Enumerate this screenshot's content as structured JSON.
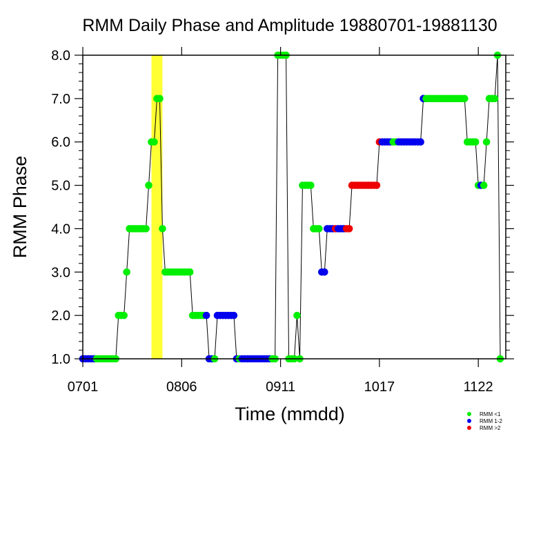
{
  "chart_data": {
    "type": "scatter",
    "title": "RMM Daily Phase and Amplitude 19880701-19881130",
    "xlabel": "Time (mmdd)",
    "ylabel": "RMM Phase",
    "xlim": [
      1,
      155
    ],
    "ylim": [
      1,
      8
    ],
    "x_tick_values": [
      1,
      37,
      73,
      109,
      145
    ],
    "x_tick_labels": [
      "0701",
      "0806",
      "0911",
      "1017",
      "1122"
    ],
    "y_tick_values": [
      1,
      2,
      3,
      4,
      5,
      6,
      7,
      8
    ],
    "y_tick_labels": [
      "1.0",
      "2.0",
      "3.0",
      "4.0",
      "5.0",
      "6.0",
      "7.0",
      "8.0"
    ],
    "highlight_band": {
      "x_start": 26,
      "x_end": 30,
      "color": "#ffff33"
    },
    "colors": {
      "low": "#00ee00",
      "mid": "#0000ee",
      "high": "#ee0000",
      "line": "#000000"
    },
    "legend": [
      {
        "label": "RMM <1",
        "color": "#00ee00"
      },
      {
        "label": "RMM 1-2",
        "color": "#0000ee"
      },
      {
        "label": "RMM >2",
        "color": "#ee0000"
      }
    ],
    "legend_position": "bottom-right",
    "day_index": [
      1,
      2,
      3,
      4,
      5,
      6,
      7,
      8,
      9,
      10,
      11,
      12,
      13,
      14,
      15,
      16,
      17,
      18,
      19,
      20,
      21,
      22,
      23,
      24,
      25,
      26,
      27,
      28,
      29,
      30,
      31,
      32,
      33,
      34,
      35,
      36,
      37,
      38,
      39,
      40,
      41,
      42,
      43,
      44,
      45,
      46,
      47,
      48,
      49,
      50,
      51,
      52,
      53,
      54,
      55,
      56,
      57,
      58,
      59,
      60,
      61,
      62,
      63,
      64,
      65,
      66,
      67,
      68,
      69,
      70,
      71,
      72,
      73,
      74,
      75,
      76,
      77,
      78,
      79,
      80,
      81,
      82,
      83,
      84,
      85,
      86,
      87,
      88,
      89,
      90,
      91,
      92,
      93,
      94,
      95,
      96,
      97,
      98,
      99,
      100,
      101,
      102,
      103,
      104,
      105,
      106,
      107,
      108,
      109,
      110,
      111,
      112,
      113,
      114,
      115,
      116,
      117,
      118,
      119,
      120,
      121,
      122,
      123,
      124,
      125,
      126,
      127,
      128,
      129,
      130,
      131,
      132,
      133,
      134,
      135,
      136,
      137,
      138,
      139,
      140,
      141,
      142,
      143,
      144,
      145,
      146,
      147,
      148,
      149,
      150,
      151,
      152,
      153
    ],
    "phase": [
      1,
      1,
      1,
      1,
      1,
      1,
      1,
      1,
      1,
      1,
      1,
      1,
      1,
      2,
      2,
      2,
      3,
      4,
      4,
      4,
      4,
      4,
      4,
      4,
      5,
      6,
      6,
      7,
      7,
      4,
      3,
      3,
      3,
      3,
      3,
      3,
      3,
      3,
      3,
      3,
      2,
      2,
      2,
      2,
      2,
      2,
      1,
      1,
      1,
      2,
      2,
      2,
      2,
      2,
      2,
      2,
      1,
      1,
      1,
      1,
      1,
      1,
      1,
      1,
      1,
      1,
      1,
      1,
      1,
      1,
      1,
      8,
      8,
      8,
      8,
      1,
      1,
      1,
      2,
      1,
      5,
      5,
      5,
      5,
      4,
      4,
      4,
      3,
      3,
      4,
      4,
      4,
      4,
      4,
      4,
      4,
      4,
      4,
      5,
      5,
      5,
      5,
      5,
      5,
      5,
      5,
      5,
      5,
      6,
      6,
      6,
      6,
      6,
      6,
      6,
      6,
      6,
      6,
      6,
      6,
      6,
      6,
      6,
      6,
      7,
      7,
      7,
      7,
      7,
      7,
      7,
      7,
      7,
      7,
      7,
      7,
      7,
      7,
      7,
      7,
      6,
      6,
      6,
      6,
      5,
      5,
      5,
      6,
      7,
      7,
      7,
      8,
      1
    ],
    "amplitude_class": [
      "mid",
      "mid",
      "mid",
      "mid",
      "mid",
      "low",
      "low",
      "low",
      "low",
      "low",
      "low",
      "low",
      "low",
      "low",
      "low",
      "low",
      "low",
      "low",
      "low",
      "low",
      "low",
      "low",
      "low",
      "low",
      "low",
      "low",
      "low",
      "low",
      "low",
      "low",
      "low",
      "low",
      "low",
      "low",
      "low",
      "low",
      "low",
      "low",
      "low",
      "low",
      "low",
      "low",
      "low",
      "low",
      "low",
      "mid",
      "mid",
      "mid",
      "low",
      "mid",
      "mid",
      "mid",
      "mid",
      "mid",
      "mid",
      "mid",
      "mid",
      "low",
      "mid",
      "mid",
      "mid",
      "mid",
      "mid",
      "mid",
      "mid",
      "mid",
      "mid",
      "mid",
      "mid",
      "low",
      "low",
      "low",
      "low",
      "low",
      "low",
      "low",
      "low",
      "low",
      "low",
      "low",
      "low",
      "low",
      "low",
      "low",
      "low",
      "low",
      "low",
      "mid",
      "mid",
      "mid",
      "mid",
      "mid",
      "high",
      "mid",
      "mid",
      "mid",
      "high",
      "high",
      "high",
      "high",
      "high",
      "high",
      "high",
      "high",
      "high",
      "high",
      "high",
      "high",
      "high",
      "mid",
      "mid",
      "mid",
      "mid",
      "low",
      "low",
      "mid",
      "mid",
      "mid",
      "mid",
      "mid",
      "mid",
      "mid",
      "mid",
      "mid",
      "mid",
      "low",
      "low",
      "low",
      "low",
      "low",
      "low",
      "low",
      "low",
      "low",
      "low",
      "low",
      "low",
      "low",
      "low",
      "low",
      "low",
      "low",
      "low",
      "low",
      "low",
      "mid",
      "low",
      "low",
      "low",
      "low",
      "low",
      "low",
      "low"
    ]
  }
}
